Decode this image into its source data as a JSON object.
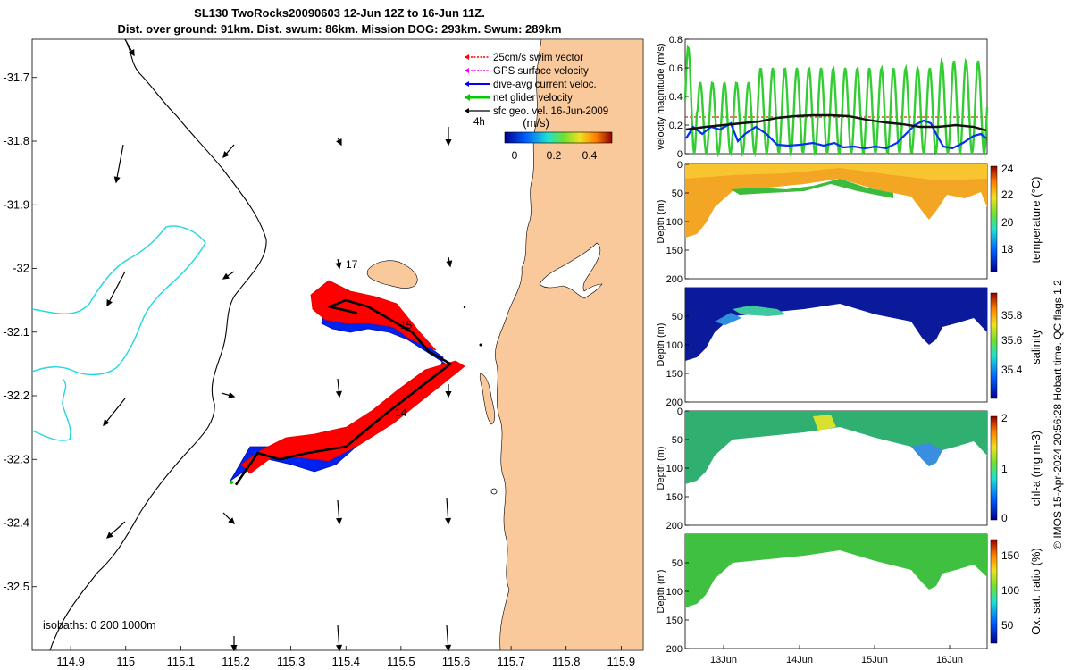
{
  "title": {
    "line1": "SL130 TwoRocks20090603 12-Jun 12Z to 16-Jun 11Z.",
    "line2": "Dist. over ground: 91km. Dist. swum: 86km. Mission DOG: 293km. Swum: 289km"
  },
  "map": {
    "x_ticks": [
      "114.9",
      "115",
      "115.1",
      "115.2",
      "115.3",
      "115.4",
      "115.5",
      "115.6",
      "115.7",
      "115.8",
      "115.9"
    ],
    "y_ticks": [
      "-31.7",
      "-31.8",
      "-31.9",
      "-32",
      "-32.1",
      "-32.2",
      "-32.3",
      "-32.4",
      "-32.5"
    ],
    "xlim": [
      114.83,
      115.94
    ],
    "ylim": [
      -32.6,
      -31.64
    ],
    "legend": [
      {
        "label": "25cm/s swim vector",
        "color": "#ff0000"
      },
      {
        "label": "GPS surface velocity",
        "color": "#ff00ff"
      },
      {
        "label": "dive-avg current veloc.",
        "color": "#0000ff"
      },
      {
        "label": "net glider velocity",
        "color": "#00cc00"
      },
      {
        "label": "sfc geo. vel. 16-Jun-2009",
        "color": "#000000"
      }
    ],
    "time_label": "4h",
    "colorbar": {
      "label": "(m/s)",
      "ticks": [
        "0",
        "0.2",
        "0.4"
      ]
    },
    "day_labels": [
      "17",
      "15",
      "14"
    ],
    "isobaths_label": "isobaths: 0   200  1000m",
    "land_color": "#f9c89b",
    "track": [
      [
        115.2,
        -32.34
      ],
      [
        115.24,
        -32.29
      ],
      [
        115.28,
        -32.3
      ],
      [
        115.33,
        -32.29
      ],
      [
        115.4,
        -32.28
      ],
      [
        115.47,
        -32.23
      ],
      [
        115.53,
        -32.19
      ],
      [
        115.59,
        -32.15
      ],
      [
        115.55,
        -32.13
      ],
      [
        115.52,
        -32.1
      ],
      [
        115.48,
        -32.08
      ],
      [
        115.44,
        -32.06
      ],
      [
        115.4,
        -32.05
      ],
      [
        115.37,
        -32.06
      ],
      [
        115.42,
        -32.07
      ]
    ]
  },
  "panels": {
    "velocity": {
      "ylabel": "velocity magnitude (m/s)",
      "y_ticks": [
        "0",
        "0.2",
        "0.4",
        "0.6",
        "0.8"
      ],
      "ylim": [
        0,
        0.8
      ]
    },
    "temperature": {
      "ylabel": "Depth (m)",
      "cbar_label": "temperature (°C)",
      "cbar_ticks": [
        "18",
        "20",
        "22",
        "24"
      ],
      "y_ticks": [
        "0",
        "50",
        "100",
        "150",
        "200"
      ]
    },
    "salinity": {
      "ylabel": "Depth (m)",
      "cbar_label": "salinity",
      "cbar_ticks": [
        "35.4",
        "35.6",
        "35.8"
      ],
      "y_ticks": [
        "50",
        "100",
        "150",
        "200"
      ]
    },
    "chla": {
      "ylabel": "Depth (m)",
      "cbar_label": "chl-a (mg m-3)",
      "cbar_ticks": [
        "0",
        "1",
        "2"
      ],
      "y_ticks": [
        "0",
        "50",
        "100",
        "150",
        "200"
      ]
    },
    "oxygen": {
      "ylabel": "Depth (m)",
      "cbar_label": "Ox. sat. ratio (%)",
      "cbar_ticks": [
        "50",
        "100",
        "150"
      ],
      "y_ticks": [
        "50",
        "100",
        "150",
        "200"
      ]
    },
    "x_ticks": [
      "13Jun",
      "14Jun",
      "15Jun",
      "16Jun"
    ]
  },
  "footer": "© IMOS 15-Apr-2024 20:56:28 Hobart time. QC flags 1  2",
  "chart_data": {
    "type": "scatter",
    "title": "SL130 TwoRocks20090603 12-Jun 12Z to 16-Jun 11Z.",
    "xlabel": "",
    "ylabel": "",
    "xlim": [
      114.83,
      115.94
    ],
    "ylim": [
      -32.6,
      -31.64
    ]
  }
}
